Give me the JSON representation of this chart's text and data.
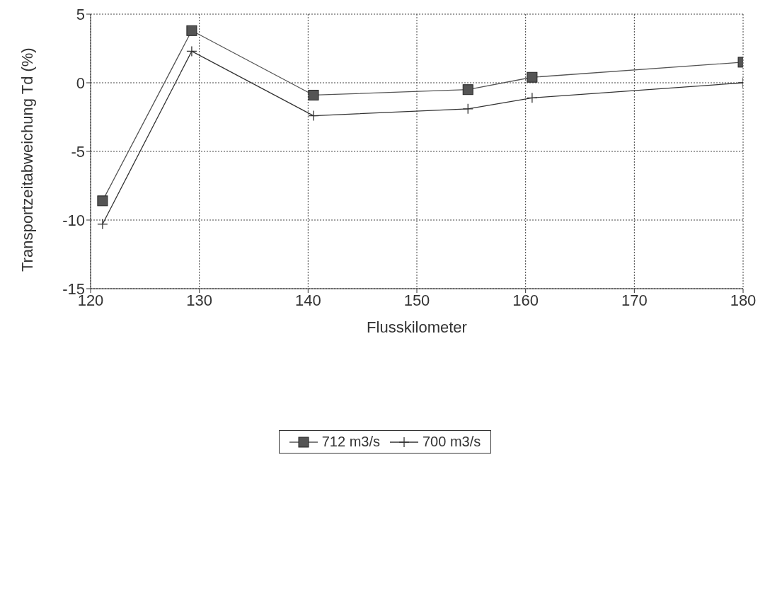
{
  "chart_data": {
    "type": "line",
    "xlabel": "Flusskilometer",
    "ylabel": "Transportzeitabweichung Td (%)",
    "xlim": [
      120,
      180
    ],
    "xticks": [
      120,
      130,
      140,
      150,
      160,
      170,
      180
    ],
    "ylim": [
      -15,
      5
    ],
    "yticks": [
      -15,
      -10,
      -5,
      0,
      5
    ],
    "grid": true,
    "legend": "bottom",
    "line_style": "solid",
    "series": [
      {
        "name": "712 m3/s",
        "color": "#555555",
        "marker": "square",
        "x": [
          121.1,
          129.3,
          140.5,
          154.7,
          160.6,
          180
        ],
        "values": [
          -8.6,
          3.8,
          -0.9,
          -0.5,
          0.4,
          1.5
        ]
      },
      {
        "name": "700 m3/s",
        "color": "#333333",
        "marker": "cross",
        "x": [
          121.1,
          129.3,
          140.5,
          154.7,
          160.6,
          180
        ],
        "values": [
          -10.3,
          2.3,
          -2.4,
          -1.9,
          -1.1,
          0
        ]
      }
    ]
  }
}
